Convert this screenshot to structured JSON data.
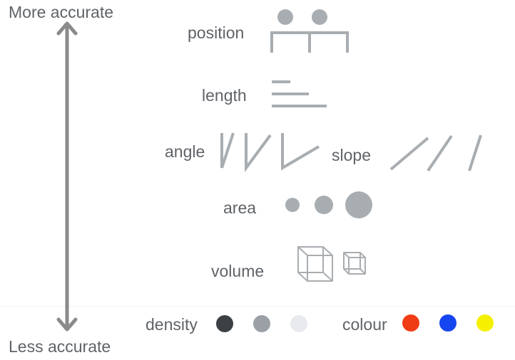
{
  "axis": {
    "top_label": "More accurate",
    "bottom_label": "Less accurate"
  },
  "encodings": {
    "position": "position",
    "length": "length",
    "angle": "angle",
    "slope": "slope",
    "area": "area",
    "volume": "volume",
    "density": "density",
    "colour": "colour"
  },
  "colors": {
    "glyph": "#a8adb1",
    "text": "#5f6368",
    "arrow": "#8a8a8a",
    "density_dark": "#3c4043",
    "density_mid": "#9aa0a6",
    "density_light": "#e8eaed",
    "colour_red": "#f03c14",
    "colour_blue": "#1646f0",
    "colour_yellow": "#f5f000"
  }
}
